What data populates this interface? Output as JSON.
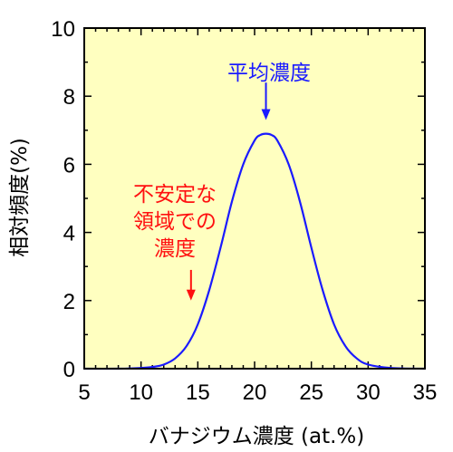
{
  "chart_data": {
    "type": "line",
    "title": "",
    "xlabel": "バナジウム濃度 (at.%)",
    "ylabel": "相対頻度(%)",
    "xlim": [
      5,
      35
    ],
    "ylim": [
      0,
      10
    ],
    "xticks": [
      5,
      10,
      15,
      20,
      25,
      30,
      35
    ],
    "yticks": [
      0,
      2,
      4,
      6,
      8,
      10
    ],
    "grid": false,
    "series": [
      {
        "x": [
          5,
          8,
          10,
          11,
          12,
          13,
          14,
          15,
          16,
          17,
          18,
          19,
          20,
          20.5,
          21,
          21.5,
          22,
          23,
          24,
          25,
          26,
          27,
          28,
          29,
          30,
          32,
          35
        ],
        "y": [
          0,
          0,
          0.02,
          0.05,
          0.12,
          0.3,
          0.66,
          1.3,
          2.3,
          3.55,
          4.9,
          6.0,
          6.7,
          6.86,
          6.9,
          6.86,
          6.7,
          6.0,
          4.9,
          3.55,
          2.3,
          1.3,
          0.66,
          0.3,
          0.12,
          0.02,
          0
        ],
        "color": "#1a1aff"
      }
    ],
    "annotations": [
      {
        "lines": [
          "平均濃度"
        ],
        "color": "#1a1aff",
        "arrow_x": 21,
        "arrow_y_from": 8.4,
        "arrow_y_to": 7.3
      },
      {
        "lines": [
          "不安定な",
          "領域での",
          "濃度"
        ],
        "color": "#ff1010",
        "arrow_x": 14.4,
        "arrow_y_from": 2.9,
        "arrow_y_to": 2.0
      }
    ],
    "colors": {
      "plot_background": "#ffffc0",
      "axis": "#000000"
    }
  }
}
